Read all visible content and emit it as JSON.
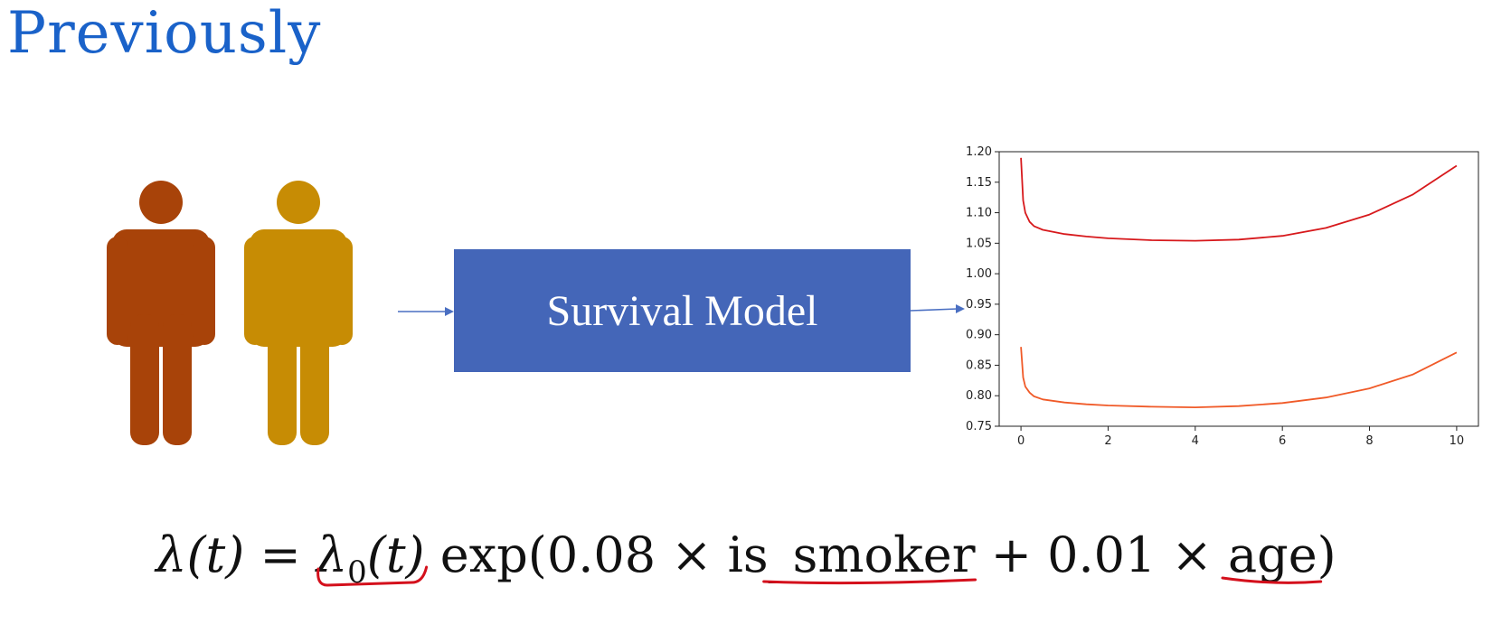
{
  "title": "Previously",
  "people": [
    {
      "name": "person-icon",
      "color": "#a84309"
    },
    {
      "name": "person-icon",
      "color": "#c78c04"
    }
  ],
  "model_box": {
    "label": "Survival Model",
    "color": "#4466b8"
  },
  "arrow_color": "#4a6fc2",
  "annotation_color": "#d4101c",
  "equation": {
    "lhs_lambda": "λ",
    "lhs_arg": "(t)",
    "equals": "=",
    "lambda0": "λ",
    "lambda0_sub": "0",
    "lambda0_arg": "(t)",
    "exp_prefix": "exp(0.08 × ",
    "smoker": "is_smoker",
    "middle": " + 0.01 × ",
    "age": "age",
    "close": ")"
  },
  "chart_data": {
    "type": "line",
    "title": "",
    "xlabel": "",
    "ylabel": "",
    "xlim": [
      -0.5,
      10.5
    ],
    "ylim": [
      0.75,
      1.2
    ],
    "x_ticks": [
      0,
      2,
      4,
      6,
      8,
      10
    ],
    "y_ticks": [
      0.75,
      0.8,
      0.85,
      0.9,
      0.95,
      1.0,
      1.05,
      1.1,
      1.15,
      1.2
    ],
    "y_tick_labels": [
      "0.75",
      "0.80",
      "0.85",
      "0.90",
      "0.95",
      "1.00",
      "1.05",
      "1.10",
      "1.15",
      "1.20"
    ],
    "grid": false,
    "series": [
      {
        "color": "#d7191c",
        "x": [
          0,
          0.05,
          0.1,
          0.2,
          0.3,
          0.5,
          1,
          1.5,
          2,
          3,
          4,
          5,
          6,
          7,
          8,
          9,
          10
        ],
        "y": [
          1.19,
          1.12,
          1.1,
          1.085,
          1.078,
          1.072,
          1.065,
          1.061,
          1.058,
          1.055,
          1.054,
          1.056,
          1.062,
          1.075,
          1.097,
          1.13,
          1.177
        ]
      },
      {
        "color": "#f05a28",
        "x": [
          0,
          0.05,
          0.1,
          0.2,
          0.3,
          0.5,
          1,
          1.5,
          2,
          3,
          4,
          5,
          6,
          7,
          8,
          9,
          10
        ],
        "y": [
          0.88,
          0.83,
          0.815,
          0.805,
          0.799,
          0.794,
          0.789,
          0.786,
          0.784,
          0.782,
          0.781,
          0.783,
          0.788,
          0.797,
          0.812,
          0.835,
          0.871
        ]
      }
    ]
  }
}
